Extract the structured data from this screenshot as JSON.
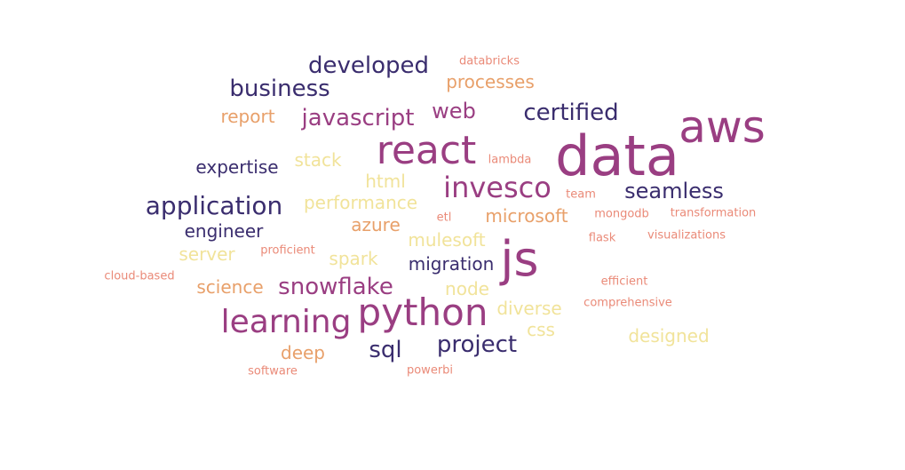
{
  "palette": {
    "navy": "#3a2d6e",
    "magenta": "#9a3e82",
    "orange": "#e8a06a",
    "salmon": "#ea8a78",
    "yellow": "#f1e39a"
  },
  "words": [
    {
      "text": "data",
      "color": "magenta"
    },
    {
      "text": "aws",
      "color": "magenta"
    },
    {
      "text": "js",
      "color": "magenta"
    },
    {
      "text": "react",
      "color": "magenta"
    },
    {
      "text": "python",
      "color": "magenta"
    },
    {
      "text": "learning",
      "color": "magenta"
    },
    {
      "text": "invesco",
      "color": "magenta"
    },
    {
      "text": "snowflake",
      "color": "magenta"
    },
    {
      "text": "javascript",
      "color": "magenta"
    },
    {
      "text": "web",
      "color": "magenta"
    },
    {
      "text": "developed",
      "color": "navy"
    },
    {
      "text": "business",
      "color": "navy"
    },
    {
      "text": "certified",
      "color": "navy"
    },
    {
      "text": "application",
      "color": "navy"
    },
    {
      "text": "seamless",
      "color": "navy"
    },
    {
      "text": "project",
      "color": "navy"
    },
    {
      "text": "sql",
      "color": "navy"
    },
    {
      "text": "expertise",
      "color": "navy"
    },
    {
      "text": "engineer",
      "color": "navy"
    },
    {
      "text": "migration",
      "color": "navy"
    },
    {
      "text": "processes",
      "color": "orange"
    },
    {
      "text": "report",
      "color": "orange"
    },
    {
      "text": "microsoft",
      "color": "orange"
    },
    {
      "text": "azure",
      "color": "orange"
    },
    {
      "text": "science",
      "color": "orange"
    },
    {
      "text": "deep",
      "color": "orange"
    },
    {
      "text": "stack",
      "color": "yellow"
    },
    {
      "text": "html",
      "color": "yellow"
    },
    {
      "text": "performance",
      "color": "yellow"
    },
    {
      "text": "server",
      "color": "yellow"
    },
    {
      "text": "spark",
      "color": "yellow"
    },
    {
      "text": "mulesoft",
      "color": "yellow"
    },
    {
      "text": "node",
      "color": "yellow"
    },
    {
      "text": "diverse",
      "color": "yellow"
    },
    {
      "text": "css",
      "color": "yellow"
    },
    {
      "text": "designed",
      "color": "yellow"
    },
    {
      "text": "databricks",
      "color": "salmon"
    },
    {
      "text": "lambda",
      "color": "salmon"
    },
    {
      "text": "team",
      "color": "salmon"
    },
    {
      "text": "etl",
      "color": "salmon"
    },
    {
      "text": "mongodb",
      "color": "salmon"
    },
    {
      "text": "transformation",
      "color": "salmon"
    },
    {
      "text": "flask",
      "color": "salmon"
    },
    {
      "text": "visualizations",
      "color": "salmon"
    },
    {
      "text": "proficient",
      "color": "salmon"
    },
    {
      "text": "cloud-based",
      "color": "salmon"
    },
    {
      "text": "efficient",
      "color": "salmon"
    },
    {
      "text": "comprehensive",
      "color": "salmon"
    },
    {
      "text": "software",
      "color": "salmon"
    },
    {
      "text": "powerbi",
      "color": "salmon"
    }
  ]
}
